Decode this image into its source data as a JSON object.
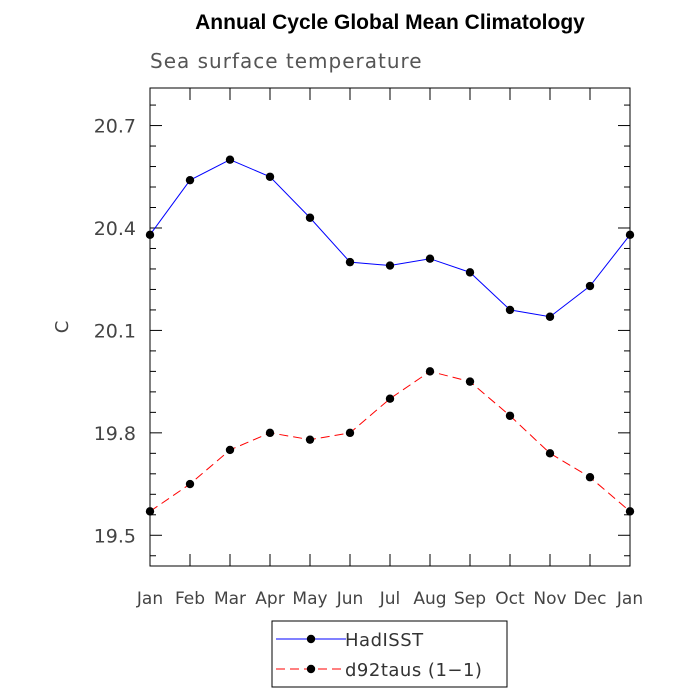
{
  "chart_data": {
    "type": "line",
    "title": "Annual Cycle Global Mean Climatology",
    "subtitle": "Sea surface temperature",
    "ylabel": "C",
    "xlabel": "",
    "categories": [
      "Jan",
      "Feb",
      "Mar",
      "Apr",
      "May",
      "Jun",
      "Jul",
      "Aug",
      "Sep",
      "Oct",
      "Nov",
      "Dec",
      "Jan"
    ],
    "ylim": [
      19.41,
      20.81
    ],
    "yticks": [
      19.5,
      19.8,
      20.1,
      20.4,
      20.7
    ],
    "ytick_labels": [
      "19.5",
      "19.8",
      "20.1",
      "20.4",
      "20.7"
    ],
    "series": [
      {
        "name": "HadISST",
        "color": "#0000ff",
        "dash": "solid",
        "values": [
          20.38,
          20.54,
          20.6,
          20.55,
          20.43,
          20.3,
          20.29,
          20.31,
          20.27,
          20.16,
          20.14,
          20.23,
          20.38
        ]
      },
      {
        "name": "d92taus (1−1)",
        "color": "#ff0000",
        "dash": "dashed",
        "values": [
          19.57,
          19.65,
          19.75,
          19.8,
          19.78,
          19.8,
          19.9,
          19.98,
          19.95,
          19.85,
          19.74,
          19.67,
          19.57
        ]
      }
    ],
    "legend_position": "bottom-center",
    "grid": false
  }
}
